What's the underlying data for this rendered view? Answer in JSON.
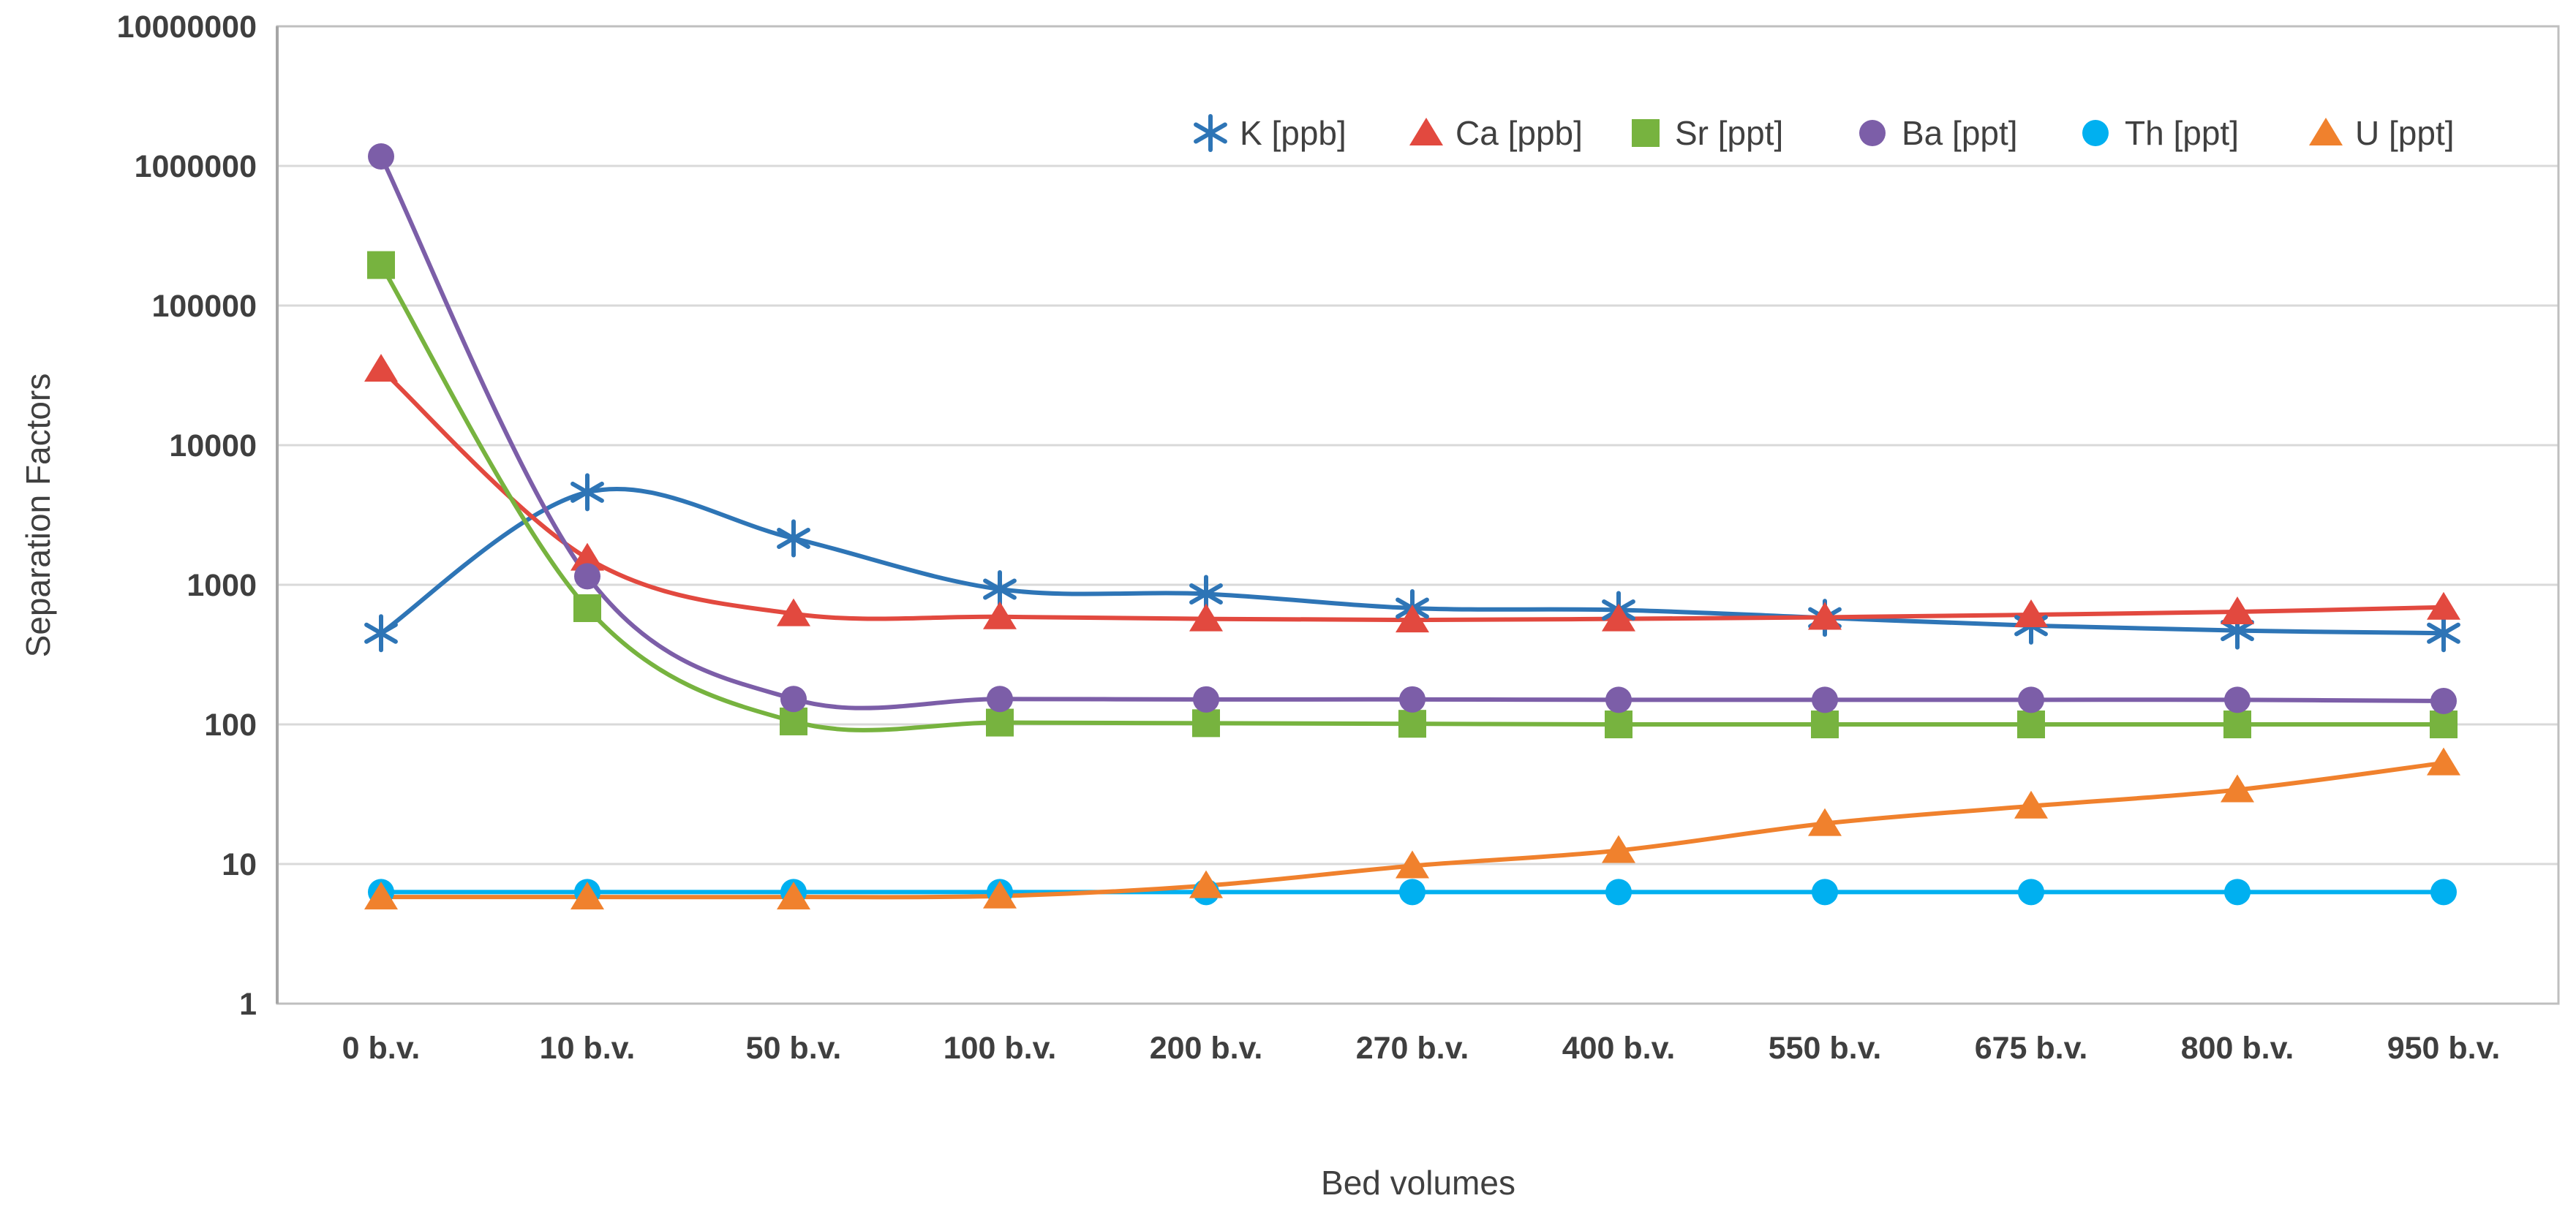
{
  "chart_data": {
    "type": "line",
    "title": "",
    "xlabel": "Bed volumes",
    "ylabel": "Separation Factors",
    "y_scale": "log10",
    "ylim": [
      1,
      10000000
    ],
    "y_ticks": [
      "1",
      "10",
      "100",
      "1000",
      "10000",
      "100000",
      "1000000",
      "10000000"
    ],
    "grid": "horizontal",
    "legend_position": "top-right-horizontal",
    "smooth_lines": true,
    "categories": [
      "0 b.v.",
      "10 b.v.",
      "50 b.v.",
      "100 b.v.",
      "200 b.v.",
      "270 b.v.",
      "400 b.v.",
      "550 b.v.",
      "675 b.v.",
      "800 b.v.",
      "950 b.v."
    ],
    "series": [
      {
        "name": "K [ppb]",
        "marker": "asterisk",
        "color": "#2E75B6",
        "values": [
          450,
          4600,
          2150,
          930,
          860,
          680,
          660,
          580,
          510,
          470,
          450
        ]
      },
      {
        "name": "Ca [ppb]",
        "marker": "triangle",
        "color": "#E2493F",
        "values": [
          35000,
          1550,
          620,
          590,
          570,
          560,
          570,
          585,
          610,
          640,
          690
        ]
      },
      {
        "name": "Sr [ppt]",
        "marker": "square",
        "color": "#77B33F",
        "values": [
          195000,
          680,
          105,
          103,
          102,
          101,
          100,
          100,
          100,
          100,
          100
        ]
      },
      {
        "name": "Ba [ppt]",
        "marker": "circle",
        "color": "#7C5EA8",
        "values": [
          1170000,
          1150,
          152,
          152,
          151,
          151,
          150,
          150,
          150,
          150,
          147
        ]
      },
      {
        "name": "Th [ppt]",
        "marker": "circle",
        "color": "#00B0F0",
        "values": [
          6.3,
          6.3,
          6.3,
          6.3,
          6.3,
          6.3,
          6.3,
          6.3,
          6.3,
          6.3,
          6.3
        ]
      },
      {
        "name": "U [ppt]",
        "marker": "triangle",
        "color": "#F0812D",
        "values": [
          5.8,
          5.8,
          5.8,
          5.9,
          7.0,
          9.7,
          12.5,
          19.5,
          26,
          34,
          53
        ]
      }
    ],
    "colors": {
      "gridline": "#D9D9D9",
      "plot_border": "#BFBFBF",
      "axis_line": "#A6A6A6",
      "tick_text": "#3F3F3F",
      "legend_text": "#404040"
    }
  }
}
